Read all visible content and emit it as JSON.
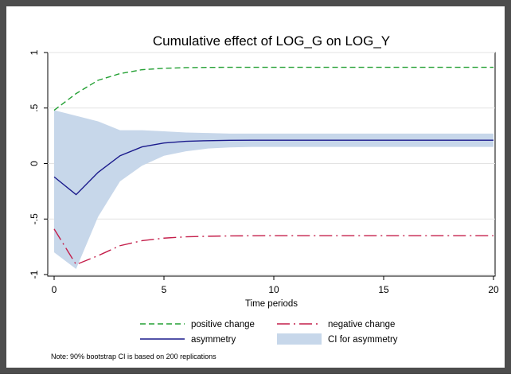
{
  "chart_data": {
    "type": "line",
    "title": "Cumulative effect of LOG_G on LOG_Y",
    "xlabel": "Time periods",
    "ylabel": "",
    "xlim": [
      0,
      20
    ],
    "ylim": [
      -1,
      1
    ],
    "x_ticks": [
      0,
      5,
      10,
      15,
      20
    ],
    "y_ticks": [
      1,
      0.5,
      0,
      -0.5,
      -1
    ],
    "y_tick_labels": [
      "1",
      ".5",
      "0",
      "-.5",
      "-1"
    ],
    "grid": true,
    "legend_position": "bottom",
    "x": [
      0,
      1,
      2,
      3,
      4,
      5,
      6,
      7,
      8,
      9,
      10,
      11,
      12,
      13,
      14,
      15,
      16,
      17,
      18,
      19,
      20
    ],
    "series": [
      {
        "name": "positive change",
        "color": "#23a033",
        "style": "dashed",
        "values": [
          0.48,
          0.63,
          0.75,
          0.81,
          0.845,
          0.858,
          0.864,
          0.866,
          0.867,
          0.867,
          0.867,
          0.867,
          0.867,
          0.867,
          0.867,
          0.867,
          0.867,
          0.867,
          0.867,
          0.867,
          0.867
        ]
      },
      {
        "name": "negative change",
        "color": "#c41e4a",
        "style": "longdash-dot",
        "values": [
          -0.59,
          -0.91,
          -0.83,
          -0.74,
          -0.695,
          -0.672,
          -0.66,
          -0.655,
          -0.652,
          -0.651,
          -0.65,
          -0.65,
          -0.65,
          -0.65,
          -0.65,
          -0.65,
          -0.65,
          -0.65,
          -0.65,
          -0.65,
          -0.65
        ]
      },
      {
        "name": "asymmetry",
        "color": "#1a1a8c",
        "style": "solid",
        "values": [
          -0.12,
          -0.28,
          -0.08,
          0.07,
          0.15,
          0.185,
          0.2,
          0.206,
          0.209,
          0.21,
          0.21,
          0.21,
          0.21,
          0.21,
          0.21,
          0.21,
          0.21,
          0.21,
          0.21,
          0.21,
          0.21
        ]
      }
    ],
    "ci": {
      "name": "CI for asymmetry",
      "color": "#c7d7ea",
      "upper": [
        0.48,
        0.43,
        0.38,
        0.3,
        0.3,
        0.29,
        0.28,
        0.275,
        0.27,
        0.27,
        0.27,
        0.27,
        0.27,
        0.27,
        0.27,
        0.27,
        0.27,
        0.27,
        0.27,
        0.27,
        0.27
      ],
      "lower": [
        -0.8,
        -0.95,
        -0.48,
        -0.16,
        -0.02,
        0.07,
        0.11,
        0.135,
        0.145,
        0.15,
        0.15,
        0.15,
        0.15,
        0.15,
        0.15,
        0.15,
        0.15,
        0.15,
        0.15,
        0.15,
        0.15
      ]
    },
    "note": "Note: 90% bootstrap CI is based on 200 replications"
  }
}
